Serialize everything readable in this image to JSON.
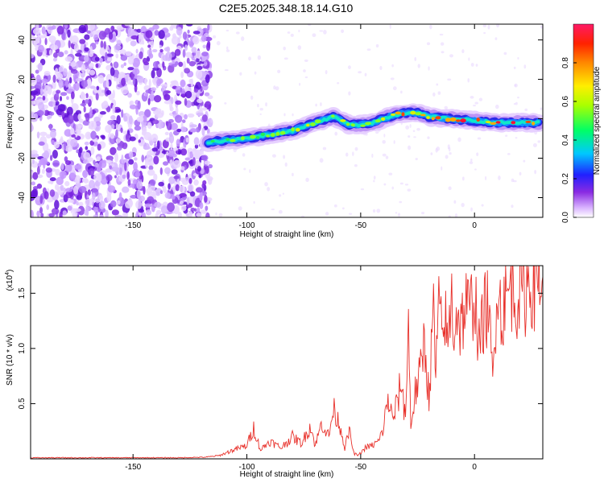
{
  "title": "C2E5.2025.348.18.14.G10",
  "chart_data": [
    {
      "type": "heatmap",
      "xlabel": "Height of straight line (km)",
      "ylabel": "Frequency (Hz)",
      "xlim": [
        -195,
        30
      ],
      "ylim": [
        -50,
        48
      ],
      "xticks": [
        -150,
        -100,
        -50,
        0
      ],
      "yticks": [
        -40,
        -20,
        0,
        20,
        40
      ],
      "colorbar": {
        "label": "Normalized spectral amplitude",
        "range": [
          0,
          1
        ],
        "ticks": [
          0.0,
          0.2,
          0.4,
          0.6,
          0.8
        ]
      },
      "ridge": {
        "x": [
          -117,
          -110,
          -100,
          -90,
          -80,
          -70,
          -62,
          -55,
          -50,
          -45,
          -40,
          -35,
          -30,
          -25,
          -20,
          -10,
          0,
          10,
          20,
          28
        ],
        "y": [
          -12,
          -11,
          -10,
          -8,
          -6,
          -2,
          1,
          -3,
          -3,
          -2,
          0,
          2,
          3,
          3,
          1,
          0,
          -1,
          -2,
          -2,
          -2
        ]
      }
    },
    {
      "type": "line",
      "xlabel": "Height of straight line (km)",
      "ylabel": "SNR (10 * v/v)",
      "scale_note": "(x10",
      "scale_exp": "4",
      "xlim": [
        -195,
        30
      ],
      "ylim": [
        0,
        1.75
      ],
      "xticks": [
        -150,
        -100,
        -50,
        0
      ],
      "yticks": [
        0.5,
        1.0,
        1.5
      ],
      "series": [
        {
          "color": "#e8302a",
          "x": [
            -195,
            -170,
            -150,
            -130,
            -118,
            -112,
            -106,
            -100,
            -97,
            -94,
            -90,
            -85,
            -80,
            -76,
            -72,
            -70,
            -67,
            -64,
            -62,
            -59,
            -57,
            -55,
            -53,
            -51,
            -48,
            -45,
            -42,
            -40,
            -38,
            -36,
            -34,
            -32,
            -31,
            -30,
            -29,
            -28,
            -26,
            -24,
            -22,
            -20,
            -18,
            -17,
            -16,
            -14,
            -13,
            -12,
            -10,
            -9,
            -8,
            -6,
            -4,
            -2,
            0,
            2,
            4,
            6,
            8,
            9,
            10,
            12,
            13,
            14,
            16,
            18,
            20,
            22,
            24,
            26,
            28,
            30
          ],
          "y": [
            0.01,
            0.01,
            0.01,
            0.01,
            0.015,
            0.03,
            0.08,
            0.12,
            0.28,
            0.08,
            0.16,
            0.1,
            0.2,
            0.14,
            0.3,
            0.12,
            0.33,
            0.2,
            0.45,
            0.3,
            0.1,
            0.25,
            0.05,
            0.03,
            0.1,
            0.12,
            0.16,
            0.28,
            0.55,
            0.35,
            0.5,
            0.72,
            0.42,
            0.55,
            1.2,
            0.3,
            0.6,
            0.75,
            1.1,
            0.55,
            1.35,
            0.7,
            1.4,
            1.05,
            1.35,
            1.0,
            1.45,
            1.15,
            1.35,
            1.2,
            1.4,
            1.3,
            1.55,
            1.0,
            1.3,
            1.4,
            0.7,
            1.1,
            1.75,
            1.2,
            1.5,
            1.4,
            1.6,
            1.45,
            1.55,
            1.5,
            1.62,
            1.58,
            1.7,
            1.65
          ]
        }
      ]
    }
  ]
}
